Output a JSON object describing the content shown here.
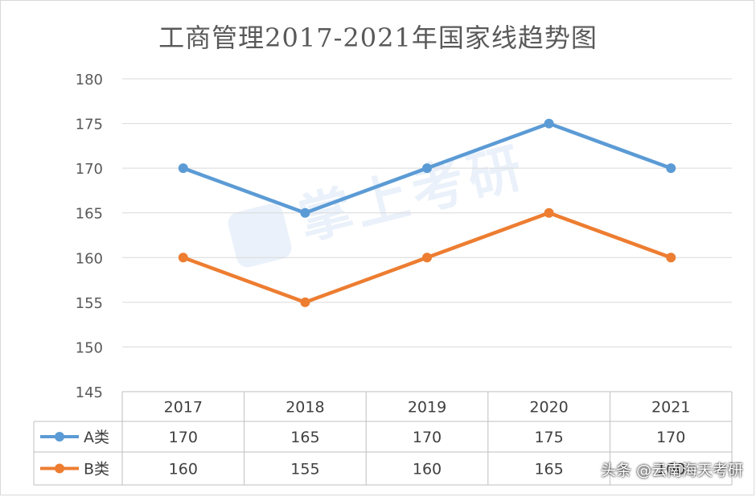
{
  "title": "工商管理2017-2021年国家线趋势图",
  "watermark": "掌上考研",
  "footer_credit": "头条 @云南海天考研",
  "chart_data": {
    "type": "line",
    "title": "工商管理2017-2021年国家线趋势图",
    "categories": [
      "2017",
      "2018",
      "2019",
      "2020",
      "2021"
    ],
    "y_ticks": [
      "145",
      "150",
      "155",
      "160",
      "165",
      "170",
      "175",
      "180"
    ],
    "ylim": [
      145,
      180
    ],
    "grid": true,
    "legend": "data-table",
    "series": [
      {
        "name": "A类",
        "color": "#5b9bd5",
        "values": [
          170,
          165,
          170,
          175,
          170
        ]
      },
      {
        "name": "B类",
        "color": "#ed7d31",
        "values": [
          160,
          155,
          160,
          165,
          160
        ]
      }
    ]
  }
}
